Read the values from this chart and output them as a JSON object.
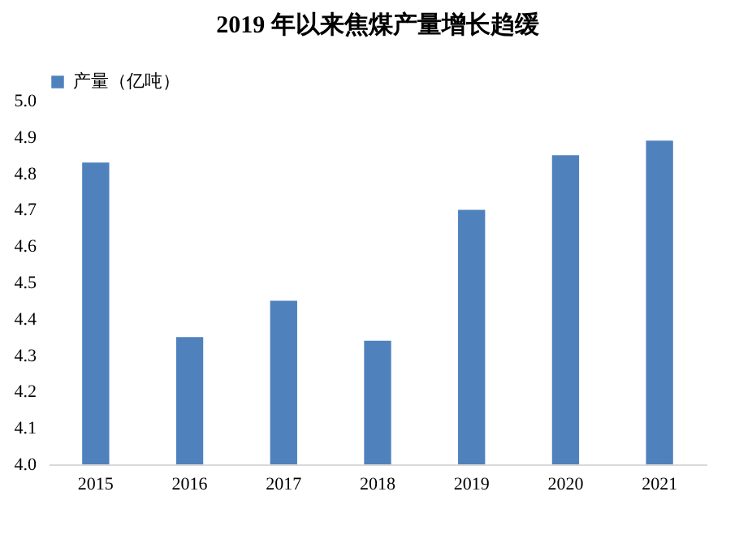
{
  "chart_data": {
    "type": "bar",
    "title": "2019 年以来焦煤产量增长趋缓",
    "categories": [
      "2015",
      "2016",
      "2017",
      "2018",
      "2019",
      "2020",
      "2021"
    ],
    "series": [
      {
        "name": "产量（亿吨）",
        "color": "#4f81bd",
        "values": [
          4.83,
          4.35,
          4.45,
          4.34,
          4.7,
          4.85,
          4.89
        ]
      }
    ],
    "ylim": [
      4.0,
      5.0
    ],
    "yticks": [
      {
        "value": 4.0,
        "label": "4.0"
      },
      4.1,
      4.2,
      4.3,
      4.4,
      4.5,
      4.6,
      4.7,
      4.8,
      4.9,
      {
        "value": 5.0,
        "label": "5.0"
      }
    ],
    "grid": false,
    "legend": "top"
  }
}
